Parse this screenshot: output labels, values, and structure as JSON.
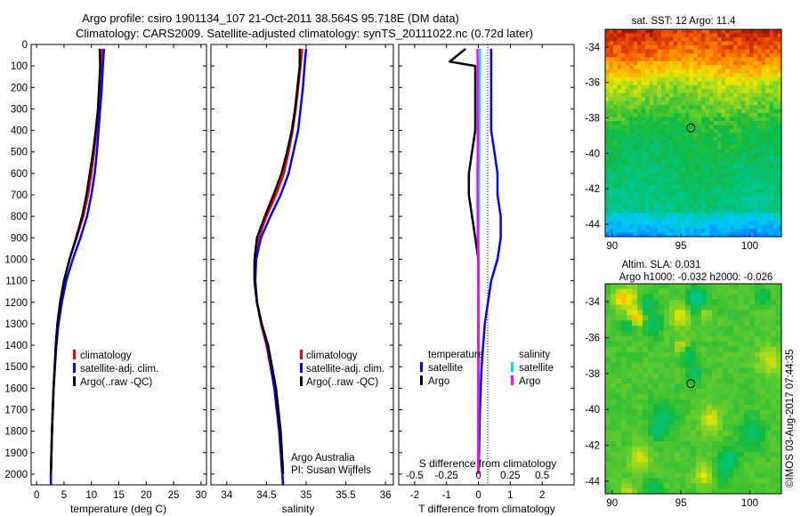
{
  "title": {
    "line1": "Argo profile: csiro 1901134_107 21-Oct-2011 38.564S 95.718E (DM data)",
    "line2": "Climatology: CARS2009. Satellite-adjusted climatology: synTS_20111022.nc (0.72d later)"
  },
  "credit": "©IMOS 03-Aug-2017 07:44:35",
  "colors": {
    "climatology": "#ff0000",
    "satellite": "#0000ff",
    "argo": "#000000",
    "sal_satellite": "#00e0e0",
    "sal_argo": "#ff00ff"
  },
  "chart_data": [
    {
      "type": "line",
      "id": "temperature",
      "xlabel": "temperature (deg C)",
      "ylim": [
        2050,
        0
      ],
      "xlim": [
        -1,
        31
      ],
      "xticks": [
        0,
        5,
        10,
        15,
        20,
        25,
        30
      ],
      "yticks": [
        0,
        100,
        200,
        300,
        400,
        500,
        600,
        700,
        800,
        900,
        1000,
        1100,
        1200,
        1300,
        1400,
        1500,
        1600,
        1700,
        1800,
        1900,
        2000
      ],
      "legend": [
        "climatology",
        "satellite-adj. clim.",
        "Argo(..raw -QC)"
      ],
      "series": [
        {
          "name": "climatology",
          "color": "#ff0000",
          "pressure": [
            20,
            100,
            200,
            300,
            400,
            500,
            600,
            700,
            800,
            900,
            1000,
            1100,
            1200,
            1300,
            1400,
            1600,
            1800,
            2000,
            2050
          ],
          "values": [
            11.9,
            11.7,
            11.5,
            11.2,
            10.9,
            10.5,
            10.0,
            9.4,
            8.5,
            7.3,
            6.0,
            5.0,
            4.3,
            3.8,
            3.5,
            3.1,
            2.8,
            2.6,
            2.6
          ]
        },
        {
          "name": "satellite-adj. clim.",
          "color": "#0000ff",
          "pressure": [
            20,
            100,
            200,
            300,
            400,
            500,
            600,
            700,
            800,
            900,
            1000,
            1100,
            1200,
            1300,
            1400,
            1600,
            1800,
            2000,
            2050
          ],
          "values": [
            12.3,
            12.1,
            11.9,
            11.6,
            11.3,
            11.0,
            10.6,
            10.0,
            9.2,
            8.0,
            6.6,
            5.4,
            4.6,
            4.0,
            3.6,
            3.1,
            2.8,
            2.6,
            2.6
          ]
        },
        {
          "name": "Argo(..raw -QC)",
          "color": "#000000",
          "pressure": [
            20,
            100,
            200,
            300,
            400,
            500,
            600,
            700,
            800,
            900,
            1000,
            1100,
            1200,
            1300,
            1400,
            1600,
            1800,
            2000
          ],
          "values": [
            11.5,
            11.6,
            11.4,
            11.2,
            10.8,
            10.3,
            9.7,
            9.1,
            8.3,
            7.2,
            6.0,
            5.0,
            4.3,
            3.8,
            3.5,
            3.1,
            2.8,
            2.6
          ]
        }
      ]
    },
    {
      "type": "line",
      "id": "salinity",
      "xlabel": "salinity",
      "ylim": [
        2050,
        0
      ],
      "xlim": [
        33.8,
        36.1
      ],
      "xticks": [
        34,
        34.5,
        35,
        35.5,
        36
      ],
      "legend": [
        "climatology",
        "satellite-adj. clim.",
        "Argo(..raw -QC)"
      ],
      "annotation": [
        "Argo Australia",
        "PI: Susan Wijffels"
      ],
      "series": [
        {
          "name": "climatology",
          "color": "#ff0000",
          "pressure": [
            20,
            100,
            200,
            300,
            400,
            500,
            600,
            700,
            800,
            900,
            1000,
            1100,
            1200,
            1300,
            1400,
            1600,
            1800,
            2000,
            2050
          ],
          "values": [
            34.95,
            34.93,
            34.9,
            34.87,
            34.83,
            34.78,
            34.72,
            34.62,
            34.5,
            34.4,
            34.35,
            34.35,
            34.38,
            34.43,
            34.5,
            34.6,
            34.66,
            34.7,
            34.71
          ]
        },
        {
          "name": "satellite-adj. clim.",
          "color": "#0000ff",
          "pressure": [
            20,
            100,
            200,
            300,
            400,
            500,
            600,
            700,
            800,
            900,
            1000,
            1100,
            1200,
            1300,
            1400,
            1600,
            1800,
            2000,
            2050
          ],
          "values": [
            35.0,
            34.98,
            34.96,
            34.93,
            34.9,
            34.84,
            34.78,
            34.68,
            34.55,
            34.43,
            34.37,
            34.36,
            34.38,
            34.44,
            34.51,
            34.6,
            34.66,
            34.7,
            34.71
          ]
        },
        {
          "name": "Argo(..raw -QC)",
          "color": "#000000",
          "pressure": [
            20,
            100,
            200,
            300,
            400,
            500,
            600,
            700,
            800,
            900,
            1000,
            1100,
            1200,
            1300,
            1400,
            1600,
            1800,
            2000
          ],
          "values": [
            34.92,
            34.92,
            34.89,
            34.86,
            34.82,
            34.76,
            34.69,
            34.59,
            34.48,
            34.38,
            34.35,
            34.35,
            34.38,
            34.44,
            34.52,
            34.62,
            34.68,
            34.71
          ]
        }
      ]
    },
    {
      "type": "line",
      "id": "difference",
      "xlabel": "T difference from climatology",
      "xlabel_top": "S difference from climatology",
      "ylim": [
        2050,
        0
      ],
      "xlim": [
        -2.5,
        3
      ],
      "xticks": [
        -2,
        -1,
        0,
        1,
        2
      ],
      "xticks_top_labels": [
        "-0.5",
        "-0.25",
        "0",
        "0.25",
        "0.5"
      ],
      "legend_headers": [
        "temperature",
        "salinity"
      ],
      "legend": [
        "satellite",
        "Argo",
        "satellite",
        "Argo"
      ],
      "series": [
        {
          "name": "satellite",
          "group": "temperature",
          "color": "#0000ff",
          "pressure": [
            20,
            100,
            200,
            300,
            400,
            500,
            600,
            700,
            800,
            900,
            1000,
            1100,
            1200,
            1300,
            1500,
            1700,
            1900,
            2000
          ],
          "values": [
            0.4,
            0.4,
            0.4,
            0.4,
            0.4,
            0.5,
            0.6,
            0.6,
            0.7,
            0.7,
            0.6,
            0.4,
            0.3,
            0.2,
            0.1,
            0.05,
            0.02,
            0.0
          ]
        },
        {
          "name": "Argo",
          "group": "temperature",
          "color": "#000000",
          "pressure": [
            20,
            80,
            100,
            200,
            300,
            400,
            500,
            600,
            700,
            800,
            900,
            1000,
            1100,
            1200,
            1300,
            1500,
            1700,
            1900,
            2000
          ],
          "values": [
            -0.4,
            -0.9,
            -0.1,
            -0.1,
            -0.1,
            -0.1,
            -0.2,
            -0.3,
            -0.3,
            -0.2,
            -0.1,
            0.0,
            0.0,
            0.0,
            0.0,
            0.0,
            0.0,
            0.0,
            0.0
          ]
        },
        {
          "name": "satellite",
          "group": "salinity",
          "color": "#00e0e0",
          "pressure": [
            20,
            100,
            200,
            300,
            400,
            500,
            600,
            700,
            800,
            900,
            1000,
            1100,
            1200,
            1300,
            1500,
            1700,
            1900,
            2000
          ],
          "values": [
            0.05,
            0.05,
            0.04,
            0.04,
            0.03,
            0.03,
            0.02,
            0.02,
            0.02,
            0.01,
            0.01,
            0.01,
            0.0,
            0.0,
            0.0,
            0.0,
            0.0,
            0.0
          ]
        },
        {
          "name": "Argo",
          "group": "salinity",
          "color": "#ff00ff",
          "pressure": [
            20,
            100,
            200,
            300,
            400,
            500,
            600,
            700,
            800,
            900,
            1000,
            1100,
            1200,
            1300,
            1500,
            1700,
            1900,
            2000
          ],
          "values": [
            -0.03,
            -0.02,
            -0.02,
            -0.02,
            -0.02,
            -0.02,
            -0.03,
            -0.03,
            -0.02,
            -0.02,
            0.0,
            0.0,
            0.0,
            0.0,
            0.0,
            0.0,
            0.0,
            0.0
          ]
        }
      ]
    },
    {
      "type": "heatmap",
      "id": "sst-map",
      "title": "sat. SST: 12 Argo: 11.4",
      "xlim": [
        89.5,
        102.3
      ],
      "ylim": [
        -44.7,
        -33.0
      ],
      "xticks": [
        90,
        95,
        100
      ],
      "yticks": [
        -34,
        -36,
        -38,
        -40,
        -42,
        -44
      ],
      "marker": {
        "lon": 95.718,
        "lat": -38.564
      }
    },
    {
      "type": "heatmap",
      "id": "sla-map",
      "title_lines": [
        "Altim. SLA: 0.031",
        "Argo h1000: -0.032 h2000: -0.026"
      ],
      "xlim": [
        89.5,
        102.3
      ],
      "ylim": [
        -44.7,
        -33.0
      ],
      "xticks": [
        90,
        95,
        100
      ],
      "yticks": [
        -34,
        -36,
        -38,
        -40,
        -42,
        -44
      ],
      "marker": {
        "lon": 95.718,
        "lat": -38.564
      }
    }
  ]
}
